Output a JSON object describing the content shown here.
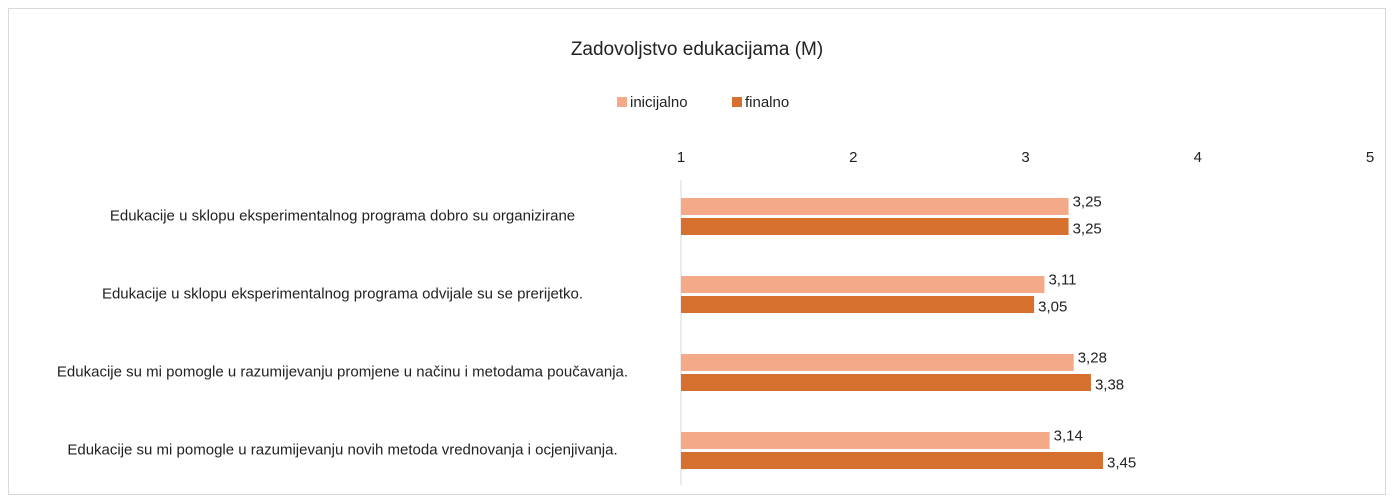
{
  "chart_data": {
    "type": "hbar",
    "title": "Zadovoljstvo edukacijama (M)",
    "categories": [
      "Edukacije u sklopu eksperimentalnog programa dobro su organizirane",
      "Edukacije u sklopu eksperimentalnog programa odvijale su se prerijetko.",
      "Edukacije su mi pomogle u razumijevanju promjene u načinu i metodama poučavanja.",
      "Edukacije su mi pomogle u razumijevanju novih metoda vrednovanja i ocjenjivanja."
    ],
    "series": [
      {
        "name": "inicijalno",
        "color": "#f4aa88",
        "values": [
          3.25,
          3.11,
          3.28,
          3.14
        ],
        "value_labels": [
          "3,25",
          "3,11",
          "3,28",
          "3,14"
        ]
      },
      {
        "name": "finalno",
        "color": "#d5702f",
        "values": [
          3.25,
          3.05,
          3.38,
          3.45
        ],
        "value_labels": [
          "3,25",
          "3,05",
          "3,38",
          "3,45"
        ]
      }
    ],
    "xlim": [
      1,
      5
    ],
    "xticks": [
      1,
      2,
      3,
      4,
      5
    ],
    "legend": "top"
  }
}
